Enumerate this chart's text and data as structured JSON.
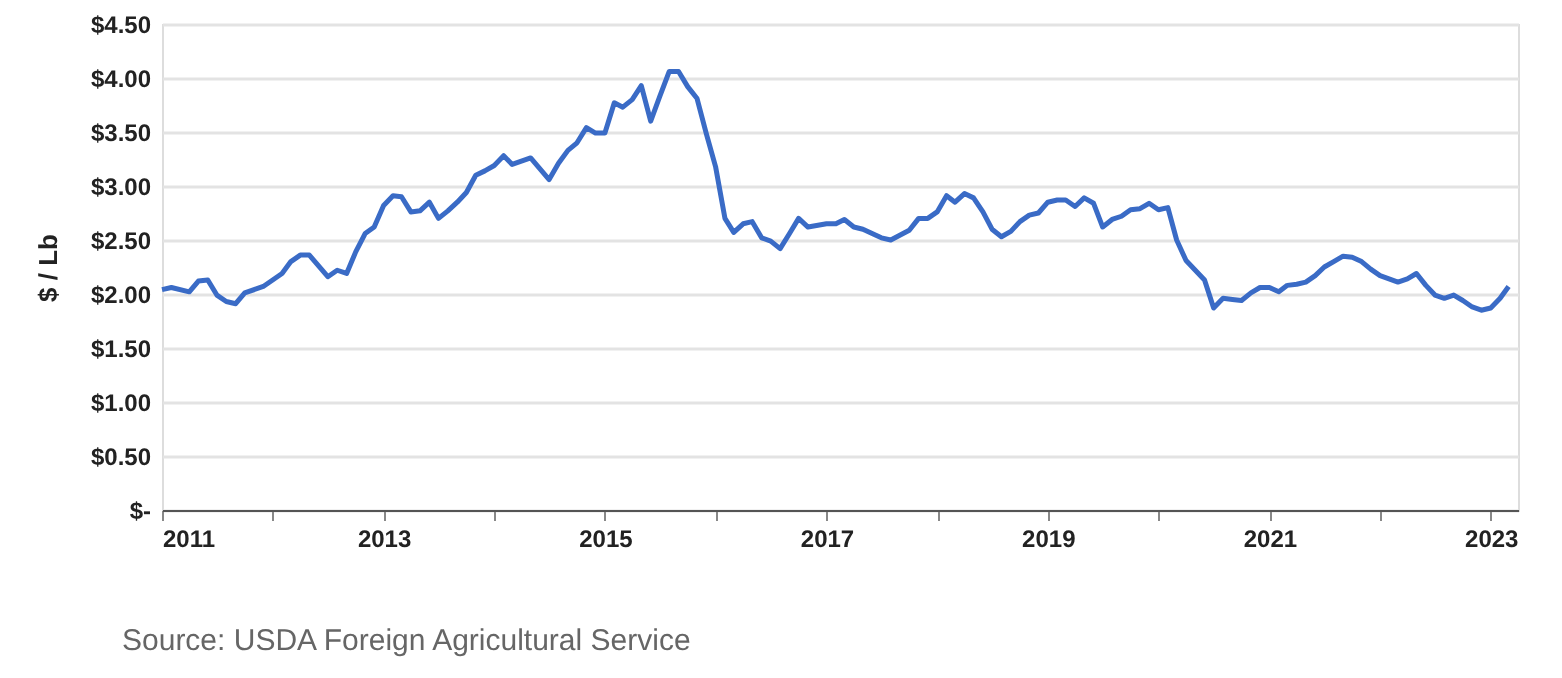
{
  "chart_data": {
    "type": "line",
    "ylabel": "$ / Lb",
    "annotations": [
      "Source: USDA Foreign Agricultural Service"
    ],
    "x": [
      "2011-01",
      "2011-02",
      "2011-04",
      "2011-05",
      "2011-06",
      "2011-07",
      "2011-08",
      "2011-09",
      "2011-10",
      "2011-12",
      "2012-02",
      "2012-03",
      "2012-04",
      "2012-05",
      "2012-07",
      "2012-08",
      "2012-09",
      "2012-10",
      "2012-11",
      "2012-12",
      "2013-01",
      "2013-02",
      "2013-03",
      "2013-04",
      "2013-05",
      "2013-06",
      "2013-07",
      "2013-08",
      "2013-09",
      "2013-10",
      "2013-11",
      "2013-12",
      "2014-01",
      "2014-02",
      "2014-03",
      "2014-05",
      "2014-07",
      "2014-08",
      "2014-09",
      "2014-10",
      "2014-11",
      "2014-12",
      "2015-01",
      "2015-02",
      "2015-03",
      "2015-04",
      "2015-05",
      "2015-06",
      "2015-07",
      "2015-08",
      "2015-09",
      "2015-10",
      "2015-11",
      "2015-12",
      "2016-01",
      "2016-02",
      "2016-03",
      "2016-04",
      "2016-05",
      "2016-06",
      "2016-07",
      "2016-08",
      "2016-09",
      "2016-10",
      "2016-11",
      "2017-01",
      "2017-02",
      "2017-03",
      "2017-04",
      "2017-05",
      "2017-07",
      "2017-08",
      "2017-10",
      "2017-11",
      "2017-12",
      "2018-01",
      "2018-02",
      "2018-03",
      "2018-04",
      "2018-05",
      "2018-06",
      "2018-07",
      "2018-08",
      "2018-09",
      "2018-10",
      "2018-11",
      "2018-12",
      "2019-01",
      "2019-02",
      "2019-03",
      "2019-04",
      "2019-05",
      "2019-06",
      "2019-07",
      "2019-08",
      "2019-09",
      "2019-10",
      "2019-11",
      "2019-12",
      "2020-01",
      "2020-02",
      "2020-03",
      "2020-04",
      "2020-06",
      "2020-07",
      "2020-08",
      "2020-09",
      "2020-10",
      "2020-11",
      "2020-12",
      "2021-01",
      "2021-02",
      "2021-03",
      "2021-04",
      "2021-05",
      "2021-06",
      "2021-07",
      "2021-08",
      "2021-09",
      "2021-10",
      "2021-11",
      "2021-12",
      "2022-01",
      "2022-03",
      "2022-04",
      "2022-05",
      "2022-06",
      "2022-07",
      "2022-08",
      "2022-09",
      "2022-10",
      "2022-11",
      "2022-12",
      "2023-01",
      "2023-02",
      "2023-03"
    ],
    "series": [
      {
        "color": "#3a6bc6",
        "values": [
          2.04,
          2.06,
          2.02,
          2.12,
          2.13,
          1.99,
          1.93,
          1.91,
          2.01,
          2.07,
          2.19,
          2.3,
          2.36,
          2.36,
          2.16,
          2.22,
          2.19,
          2.39,
          2.56,
          2.62,
          2.82,
          2.91,
          2.9,
          2.76,
          2.77,
          2.85,
          2.7,
          2.77,
          2.85,
          2.94,
          3.1,
          3.14,
          3.19,
          3.28,
          3.2,
          3.26,
          3.06,
          3.21,
          3.33,
          3.4,
          3.54,
          3.49,
          3.49,
          3.77,
          3.73,
          3.8,
          3.93,
          3.6,
          3.83,
          4.06,
          4.06,
          3.92,
          3.81,
          3.49,
          3.18,
          2.7,
          2.57,
          2.65,
          2.67,
          2.52,
          2.49,
          2.42,
          2.56,
          2.7,
          2.62,
          2.65,
          2.65,
          2.69,
          2.62,
          2.6,
          2.52,
          2.5,
          2.59,
          2.7,
          2.7,
          2.76,
          2.91,
          2.85,
          2.93,
          2.89,
          2.76,
          2.6,
          2.53,
          2.58,
          2.67,
          2.73,
          2.75,
          2.85,
          2.87,
          2.87,
          2.81,
          2.89,
          2.84,
          2.62,
          2.69,
          2.72,
          2.78,
          2.79,
          2.84,
          2.78,
          2.8,
          2.5,
          2.31,
          2.13,
          1.87,
          1.96,
          1.95,
          1.94,
          2.01,
          2.06,
          2.06,
          2.02,
          2.08,
          2.09,
          2.11,
          2.17,
          2.25,
          2.3,
          2.35,
          2.34,
          2.3,
          2.23,
          2.17,
          2.11,
          2.14,
          2.19,
          2.08,
          1.99,
          1.96,
          1.99,
          1.94,
          1.88,
          1.85,
          1.87,
          1.96,
          2.07
        ]
      }
    ],
    "xlim": [
      "2011-01",
      "2023-04"
    ],
    "xticks": [
      "2011",
      {
        "value": "2012",
        "label": null
      },
      "2013",
      {
        "value": "2014",
        "label": null
      },
      "2015",
      {
        "value": "2016",
        "label": null
      },
      "2017",
      {
        "value": "2018",
        "label": null
      },
      "2019",
      {
        "value": "2020",
        "label": null
      },
      "2021",
      {
        "value": "2022",
        "label": null
      },
      "2023"
    ],
    "ylim": [
      0,
      4.5
    ],
    "yticks": [
      {
        "value": 0,
        "label": "$-"
      },
      {
        "value": 0.5,
        "label": "$0.50"
      },
      {
        "value": 1,
        "label": "$1.00"
      },
      {
        "value": 1.5,
        "label": "$1.50"
      },
      {
        "value": 2,
        "label": "$2.00"
      },
      {
        "value": 2.5,
        "label": "$2.50"
      },
      {
        "value": 3,
        "label": "$3.00"
      },
      {
        "value": 3.5,
        "label": "$3.50"
      },
      {
        "value": 4,
        "label": "$4.00"
      },
      {
        "value": 4.5,
        "label": "$4.50"
      }
    ],
    "grid": "y",
    "marker": "none",
    "line_style": "solid"
  }
}
